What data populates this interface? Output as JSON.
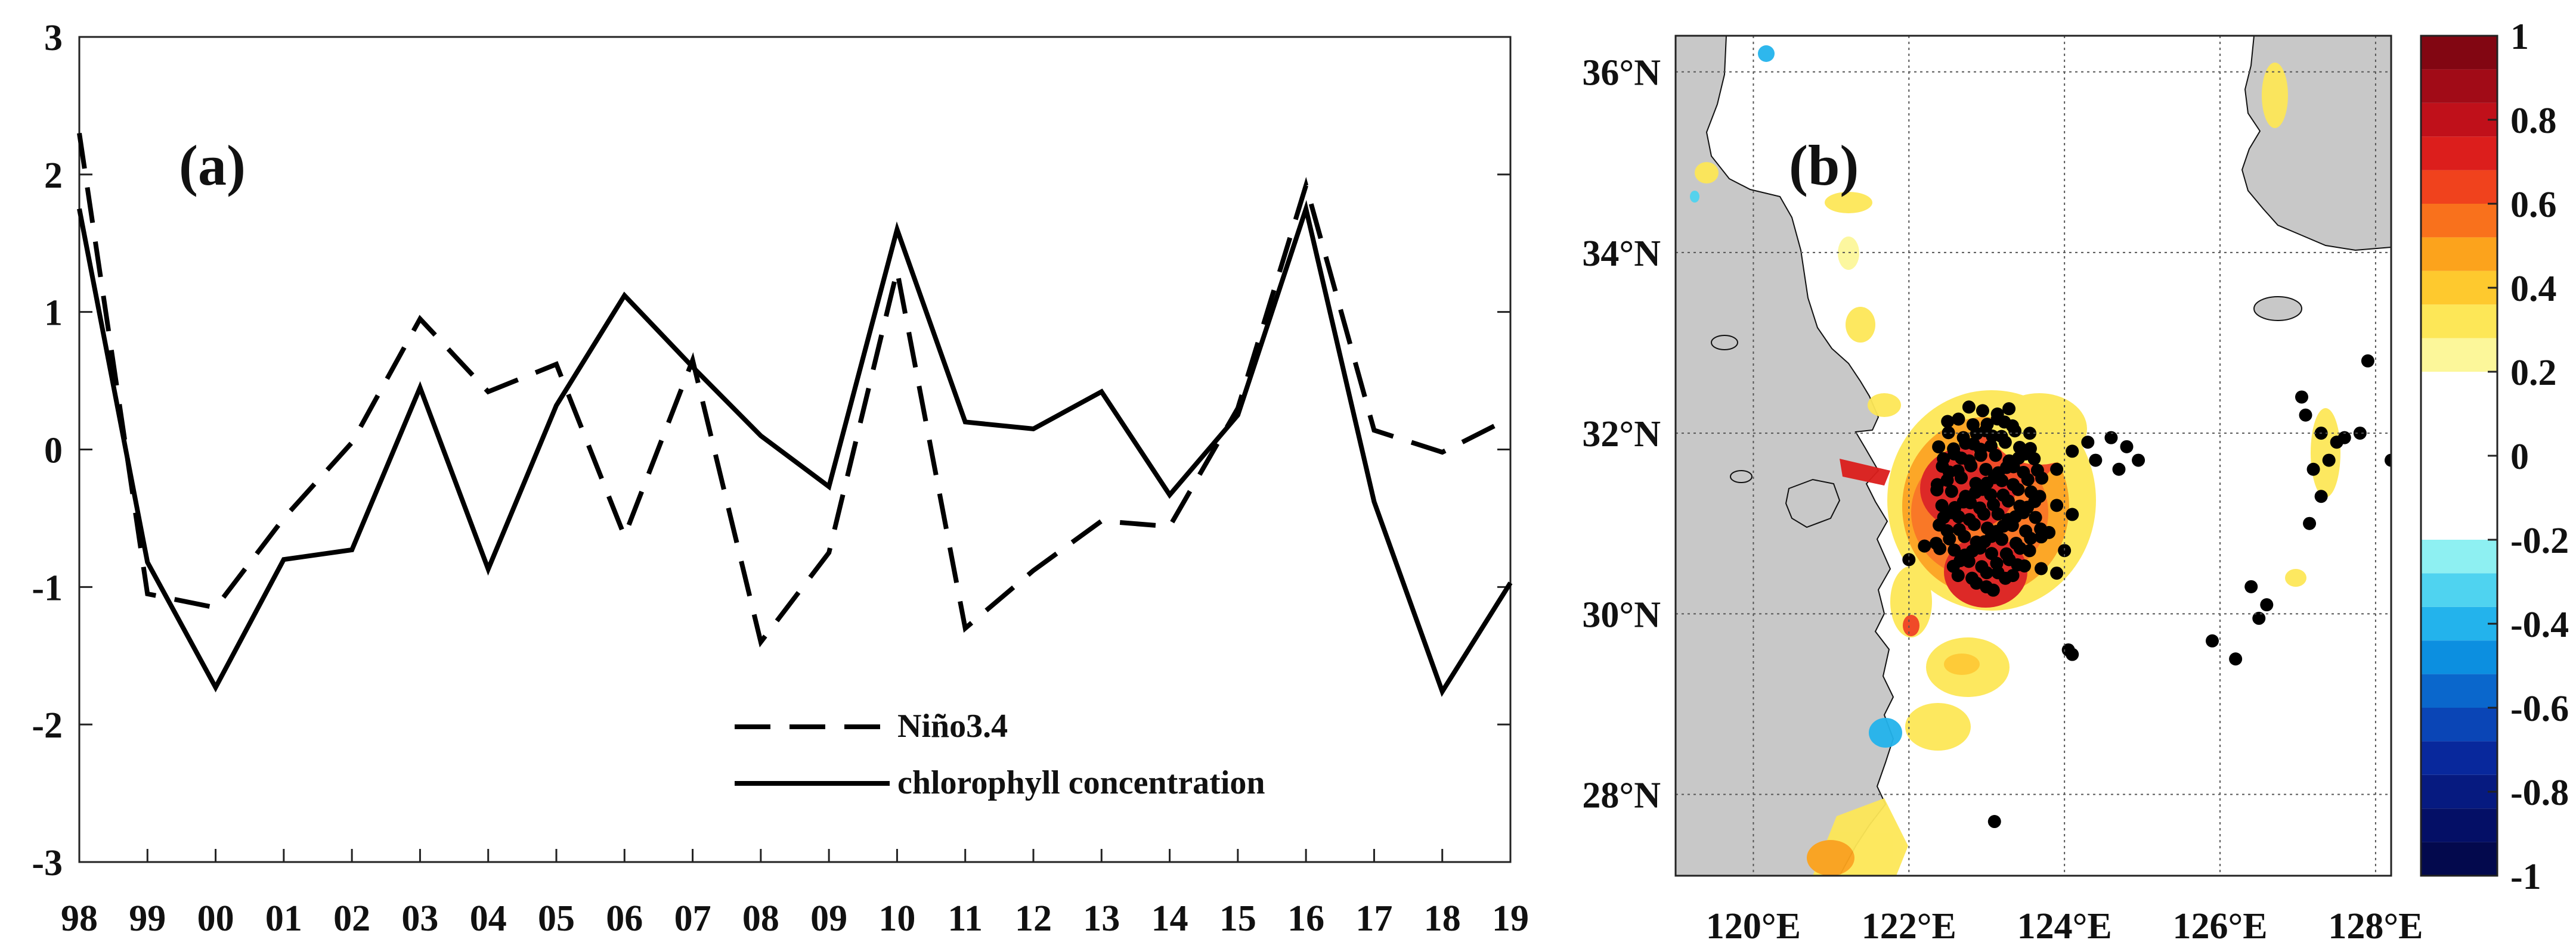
{
  "chart_data": [
    {
      "type": "line",
      "panel_label": "(a)",
      "categories": [
        "98",
        "99",
        "00",
        "01",
        "02",
        "03",
        "04",
        "05",
        "06",
        "07",
        "08",
        "09",
        "10",
        "11",
        "12",
        "13",
        "14",
        "15",
        "16",
        "17",
        "18",
        "19"
      ],
      "ylim": [
        -3,
        3
      ],
      "yticks": [
        "3",
        "2",
        "1",
        "0",
        "-1",
        "-2",
        "-3"
      ],
      "ytick_values": [
        3,
        2,
        1,
        0,
        -1,
        -2,
        -3
      ],
      "series": [
        {
          "name": "Niño3.4",
          "style": "dashed",
          "values": [
            2.3,
            -1.05,
            -1.15,
            -0.5,
            0.05,
            0.95,
            0.42,
            0.62,
            -0.63,
            0.65,
            -1.4,
            -0.75,
            1.3,
            -1.3,
            -0.88,
            -0.52,
            -0.56,
            0.3,
            1.92,
            0.14,
            -0.02,
            0.23
          ]
        },
        {
          "name": "chlorophyll concentration",
          "style": "solid",
          "values": [
            1.75,
            -0.82,
            -1.73,
            -0.8,
            -0.73,
            0.45,
            -0.87,
            0.32,
            1.12,
            0.6,
            0.1,
            -0.27,
            1.6,
            0.2,
            0.15,
            0.42,
            -0.33,
            0.25,
            1.75,
            -0.38,
            -1.76,
            -0.97
          ]
        }
      ]
    },
    {
      "type": "heatmap",
      "panel_label": "(b)",
      "xlabels": [
        "120°E",
        "122°E",
        "124°E",
        "126°E",
        "128°E"
      ],
      "x_values": [
        120,
        122,
        124,
        126,
        128
      ],
      "ylabels": [
        "28°N",
        "30°N",
        "32°N",
        "34°N",
        "36°N"
      ],
      "y_values": [
        28,
        30,
        32,
        34,
        36
      ],
      "xlim": [
        119,
        128.2
      ],
      "ylim": [
        27.1,
        36.4
      ],
      "colorbar": {
        "range": [
          -1,
          1
        ],
        "ticks": [
          "1",
          "0.8",
          "0.6",
          "0.4",
          "0.2",
          "0",
          "-0.2",
          "-0.4",
          "-0.6",
          "-0.8",
          "-1"
        ],
        "tick_values": [
          1,
          0.8,
          0.6,
          0.4,
          0.2,
          0,
          -0.2,
          -0.4,
          -0.6,
          -0.8,
          -1
        ],
        "colors_positive": [
          "#fcf79a",
          "#fde757",
          "#fec92e",
          "#fca31c",
          "#f9711c",
          "#f0421d",
          "#dc1e1c",
          "#c0101a",
          "#a10b17",
          "#820612"
        ],
        "colors_negative": [
          "#8ef0f2",
          "#4fd3f0",
          "#23b3ec",
          "#0c8fe0",
          "#0a67cc",
          "#0a45b6",
          "#08289c",
          "#061a80",
          "#040f66",
          "#03094d"
        ]
      },
      "colors": {
        "land": "#c8c8c8",
        "ocean": "#ffffff",
        "dots": "#000000"
      }
    }
  ]
}
